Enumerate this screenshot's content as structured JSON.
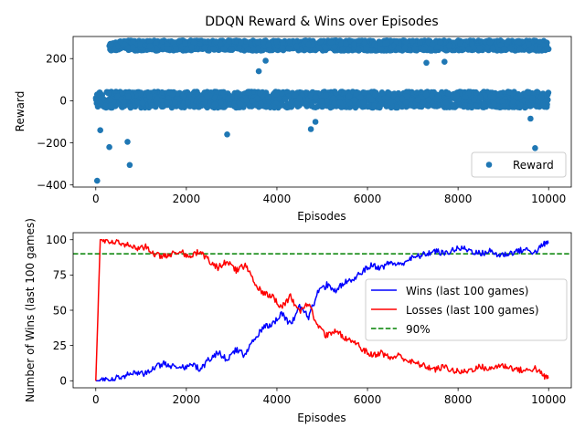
{
  "chart_data": [
    {
      "type": "scatter",
      "title": "DDQN Reward & Wins over Episodes",
      "xlabel": "Episodes",
      "ylabel": "Reward",
      "xlim": [
        -500,
        10500
      ],
      "ylim": [
        -410,
        305
      ],
      "xticks": [
        0,
        2000,
        4000,
        6000,
        8000,
        10000
      ],
      "xtick_labels": [
        "0",
        "2000",
        "4000",
        "6000",
        "8000",
        "10000"
      ],
      "yticks": [
        -400,
        -200,
        0,
        200
      ],
      "ytick_labels": [
        "−400",
        "−200",
        "0",
        "200"
      ],
      "grid": false,
      "legend_position": "lower right",
      "series": [
        {
          "name": "Reward",
          "color": "#1f77b4",
          "marker": "circle",
          "description": "one point per episode, 10000 episodes",
          "clusters": [
            {
              "label": "win",
              "x_range": [
                300,
                10000
              ],
              "y_center": 262,
              "y_spread": 24
            },
            {
              "label": "non-win",
              "x_range": [
                0,
                10000
              ],
              "y_center": 5,
              "y_spread": 38
            }
          ],
          "outliers": [
            {
              "x": 30,
              "y": -380
            },
            {
              "x": 750,
              "y": -305
            },
            {
              "x": 300,
              "y": -220
            },
            {
              "x": 700,
              "y": -195
            },
            {
              "x": 2900,
              "y": -160
            },
            {
              "x": 9700,
              "y": -225
            },
            {
              "x": 4750,
              "y": -135
            },
            {
              "x": 4850,
              "y": -100
            },
            {
              "x": 3600,
              "y": 140
            },
            {
              "x": 3750,
              "y": 190
            },
            {
              "x": 7300,
              "y": 180
            },
            {
              "x": 7700,
              "y": 185
            },
            {
              "x": 9600,
              "y": -85
            },
            {
              "x": 100,
              "y": -140
            }
          ]
        }
      ]
    },
    {
      "type": "line",
      "title": "",
      "xlabel": "Episodes",
      "ylabel": "Number of Wins (last 100 games)",
      "xlim": [
        -500,
        10500
      ],
      "ylim": [
        -5,
        105
      ],
      "xticks": [
        0,
        2000,
        4000,
        6000,
        8000,
        10000
      ],
      "xtick_labels": [
        "0",
        "2000",
        "4000",
        "6000",
        "8000",
        "10000"
      ],
      "yticks": [
        0,
        25,
        50,
        75,
        100
      ],
      "ytick_labels": [
        "0",
        "25",
        "50",
        "75",
        "100"
      ],
      "grid": false,
      "legend_position": "center right",
      "series": [
        {
          "name": "Wins (last 100 games)",
          "color": "#0000ff",
          "style": "solid",
          "x": [
            0,
            100,
            300,
            500,
            700,
            900,
            1100,
            1300,
            1500,
            1700,
            1900,
            2100,
            2300,
            2500,
            2700,
            2900,
            3100,
            3300,
            3500,
            3700,
            3900,
            4100,
            4300,
            4500,
            4700,
            4900,
            5100,
            5300,
            5500,
            5700,
            5900,
            6100,
            6300,
            6500,
            6700,
            6900,
            7100,
            7300,
            7500,
            7700,
            7900,
            8100,
            8300,
            8500,
            8700,
            8900,
            9100,
            9300,
            9500,
            9700,
            9900,
            10000
          ],
          "y": [
            0,
            0,
            1,
            2,
            4,
            6,
            5,
            10,
            12,
            10,
            9,
            12,
            8,
            15,
            20,
            15,
            22,
            18,
            30,
            38,
            40,
            48,
            40,
            52,
            45,
            62,
            68,
            64,
            70,
            72,
            78,
            82,
            80,
            84,
            82,
            86,
            88,
            90,
            92,
            90,
            93,
            94,
            92,
            90,
            92,
            89,
            90,
            92,
            93,
            91,
            97,
            98
          ]
        },
        {
          "name": "Losses (last 100 games)",
          "color": "#ff0000",
          "style": "solid",
          "x": [
            0,
            100,
            300,
            500,
            700,
            900,
            1100,
            1300,
            1500,
            1700,
            1900,
            2100,
            2300,
            2500,
            2700,
            2900,
            3100,
            3300,
            3500,
            3700,
            3900,
            4100,
            4300,
            4500,
            4700,
            4900,
            5100,
            5300,
            5500,
            5700,
            5900,
            6100,
            6300,
            6500,
            6700,
            6900,
            7100,
            7300,
            7500,
            7700,
            7900,
            8100,
            8300,
            8500,
            8700,
            8900,
            9100,
            9300,
            9500,
            9700,
            9900,
            10000
          ],
          "y": [
            0,
            100,
            99,
            98,
            96,
            94,
            95,
            90,
            88,
            90,
            91,
            88,
            92,
            85,
            80,
            85,
            78,
            82,
            70,
            62,
            60,
            52,
            60,
            48,
            55,
            38,
            32,
            36,
            30,
            28,
            22,
            18,
            20,
            16,
            18,
            14,
            12,
            10,
            8,
            10,
            7,
            6,
            8,
            10,
            8,
            11,
            10,
            8,
            7,
            9,
            3,
            2
          ]
        },
        {
          "name": "90%",
          "color": "#008000",
          "style": "dashed",
          "constant_y": 90
        }
      ]
    }
  ]
}
